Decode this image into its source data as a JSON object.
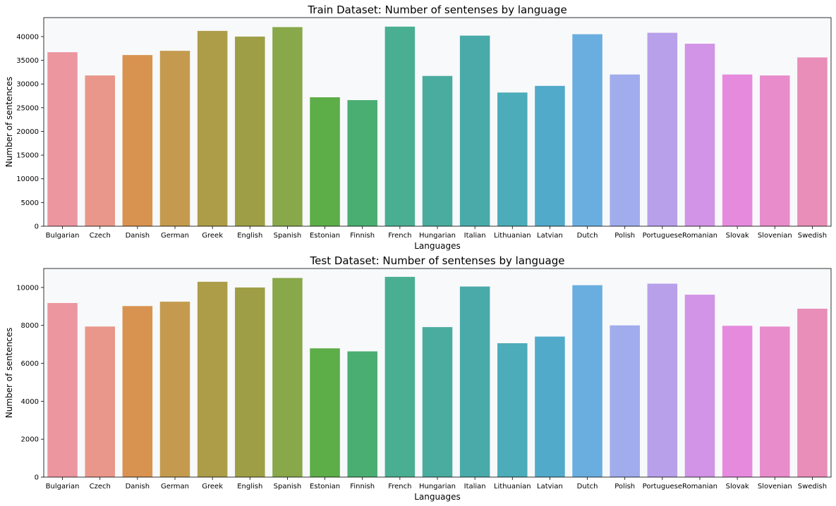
{
  "chart_data": [
    {
      "type": "bar",
      "title": "Train Dataset: Number of sentenses by language",
      "xlabel": "Languages",
      "ylabel": "Number of sentences",
      "ylim": [
        0,
        44000
      ],
      "yticks": [
        0,
        5000,
        10000,
        15000,
        20000,
        25000,
        30000,
        35000,
        40000
      ],
      "grid": false,
      "categories": [
        "Bulgarian",
        "Czech",
        "Danish",
        "German",
        "Greek",
        "English",
        "Spanish",
        "Estonian",
        "Finnish",
        "French",
        "Hungarian",
        "Italian",
        "Lithuanian",
        "Latvian",
        "Dutch",
        "Polish",
        "Portuguese",
        "Romanian",
        "Slovak",
        "Slovenian",
        "Swedish"
      ],
      "values": [
        36700,
        31800,
        36100,
        37000,
        41200,
        40000,
        42000,
        27200,
        26600,
        42100,
        31700,
        40200,
        28200,
        29600,
        40500,
        32000,
        40800,
        38500,
        32000,
        31800,
        35600
      ]
    },
    {
      "type": "bar",
      "title": "Test Dataset: Number of sentenses by language",
      "xlabel": "Languages",
      "ylabel": "Number of sentences",
      "ylim": [
        0,
        11000
      ],
      "yticks": [
        0,
        2000,
        4000,
        6000,
        8000,
        10000
      ],
      "grid": false,
      "categories": [
        "Bulgarian",
        "Czech",
        "Danish",
        "German",
        "Greek",
        "English",
        "Spanish",
        "Estonian",
        "Finnish",
        "French",
        "Hungarian",
        "Italian",
        "Lithuanian",
        "Latvian",
        "Dutch",
        "Polish",
        "Portuguese",
        "Romanian",
        "Slovak",
        "Slovenian",
        "Swedish"
      ],
      "values": [
        9180,
        7940,
        9020,
        9250,
        10300,
        10000,
        10500,
        6790,
        6630,
        10560,
        7910,
        10050,
        7060,
        7410,
        10120,
        8000,
        10200,
        9620,
        7980,
        7940,
        8880
      ]
    }
  ],
  "colors": {
    "plot_background": "#f8f9fb",
    "bars": [
      "#ec96a0",
      "#e8978a",
      "#d89350",
      "#c49b4e",
      "#ad9c48",
      "#9e9e46",
      "#88a84a",
      "#5dad49",
      "#4aae72",
      "#4aae92",
      "#4aac9e",
      "#4aaaaa",
      "#4cacb9",
      "#51aac9",
      "#6aaee0",
      "#a0acec",
      "#b8a0ea",
      "#d294e6",
      "#e68ade",
      "#e88ccb",
      "#e88eb8"
    ]
  }
}
